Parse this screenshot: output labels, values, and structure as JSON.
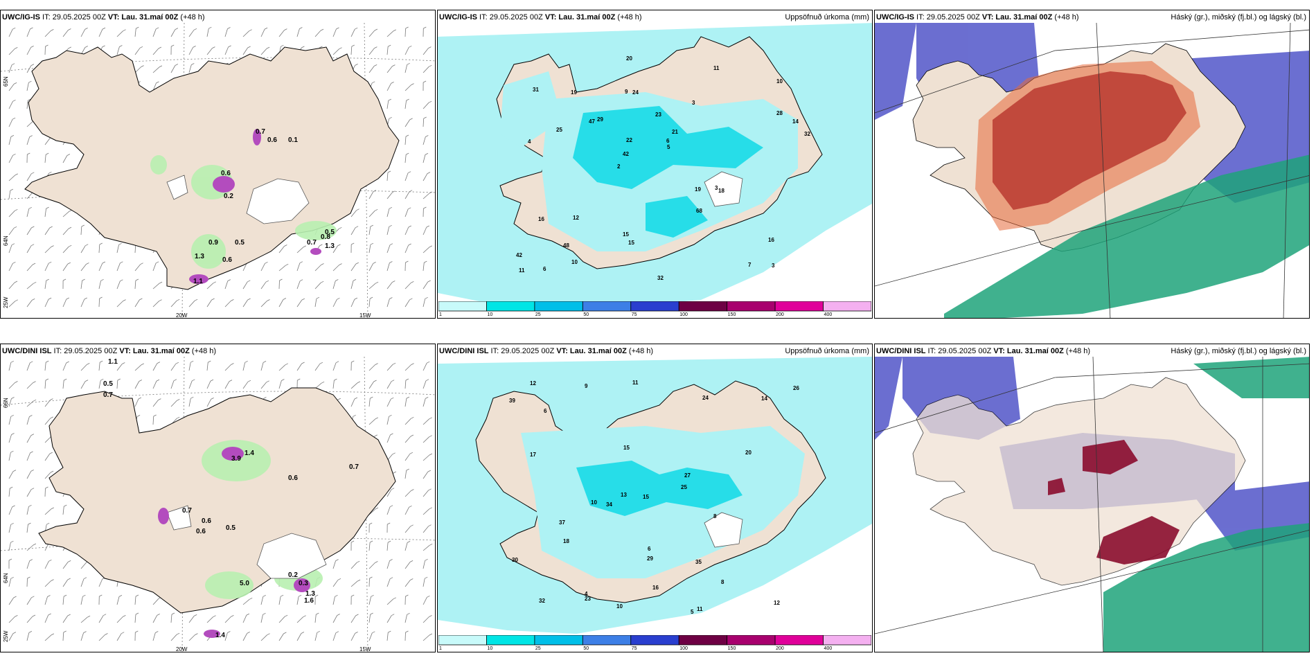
{
  "panels": {
    "r1c1": {
      "title_model": "UWC/IG-IS",
      "title_rest": " IT: 29.05.2025 00Z ",
      "title_vt": "VT: Lau. 31.maí 00Z",
      "title_tail": " (+48 h)",
      "right_title": ""
    },
    "r1c2": {
      "title_model": "UWC/IG-IS",
      "title_rest": " IT: 29.05.2025 00Z ",
      "title_vt": "VT: Lau. 31.maí 00Z",
      "title_tail": " (+48 h)",
      "right_title": "Uppsöfnuð úrkoma (mm)"
    },
    "r1c3": {
      "title_model": "UWC/IG-IS",
      "title_rest": " IT: 29.05.2025 00Z ",
      "title_vt": "VT: Lau. 31.maí 00Z",
      "title_tail": " (+48 h)",
      "right_title": "Háský (gr.), miðský (fj.bl.) og lágský (bl.)"
    },
    "r2c1": {
      "title_model": "UWC/DINI ISL",
      "title_rest": " IT: 29.05.2025 00Z ",
      "title_vt": "VT: Lau. 31.maí 00Z",
      "title_tail": " (+48 h)",
      "right_title": ""
    },
    "r2c2": {
      "title_model": "UWC/DINI ISL",
      "title_rest": " IT: 29.05.2025 00Z ",
      "title_vt": "VT: Lau. 31.maí 00Z",
      "title_tail": " (+48 h)",
      "right_title": "Uppsöfnuð úrkoma (mm)"
    },
    "r2c3": {
      "title_model": "UWC/DINI ISL",
      "title_rest": " IT: 29.05.2025 00Z ",
      "title_vt": "VT: Lau. 31.maí 00Z",
      "title_tail": " (+48 h)",
      "right_title": "Háský (gr.), miðský (fj.bl.) og lágský (bl.)"
    }
  },
  "axis_labels": {
    "lon_20w": "20W",
    "lon_15w": "15W",
    "lat_65n": "65N",
    "lat_64n": "64N",
    "lon_25w": "25W",
    "lat_66n": "66N"
  },
  "colorbar": {
    "ticks": [
      "1",
      "10",
      "25",
      "50",
      "75",
      "100",
      "150",
      "200",
      "400"
    ],
    "colors": [
      "#c8fafa",
      "#00e5e5",
      "#00bfe8",
      "#3d7fe6",
      "#2a3fcf",
      "#6e0044",
      "#a8006e",
      "#e0009a",
      "#f4b0f0"
    ]
  },
  "colors": {
    "land": "#efe1d3",
    "precip": "#aef2f4",
    "precip_high": "#27dde8",
    "cloud_high": "#8b0d2e",
    "cloud_mid": "#1fa37a",
    "cloud_low": "#5b5fcc",
    "trace_green": "#b8f0b0",
    "trace_purple": "#b34cbe"
  },
  "left_map_values": {
    "top": [
      "0.7",
      "0.6",
      "0.1",
      "0.6",
      "0.9",
      "0.5",
      "0.2",
      "1.3",
      "0.6",
      "1.1",
      "0.5",
      "0.8",
      "0.7",
      "1.3"
    ],
    "bottom": [
      "1.1",
      "0.5",
      "0.7",
      "1.4",
      "3.9",
      "0.6",
      "0.7",
      "0.6",
      "0.6",
      "0.7",
      "0.5",
      "5.0",
      "0.2",
      "0.3",
      "1.3",
      "1.6",
      "1.4"
    ]
  },
  "precip_values_top": [
    "3",
    "4",
    "10",
    "2",
    "3",
    "6",
    "9",
    "23",
    "16",
    "29",
    "42",
    "48",
    "24",
    "21",
    "18",
    "31",
    "20",
    "32",
    "19",
    "28",
    "42",
    "15",
    "22",
    "19",
    "11",
    "12",
    "7",
    "16",
    "3",
    "32",
    "47",
    "25",
    "68",
    "10",
    "14",
    "6",
    "11",
    "15",
    "5"
  ],
  "precip_values_bottom": [
    "10",
    "5",
    "4",
    "8",
    "9",
    "6",
    "10",
    "12",
    "11",
    "15",
    "14",
    "16",
    "13",
    "29",
    "24",
    "25",
    "17",
    "23",
    "34",
    "39",
    "35",
    "26",
    "27",
    "32",
    "20",
    "37",
    "30",
    "18",
    "12",
    "8",
    "15",
    "11",
    "6"
  ]
}
